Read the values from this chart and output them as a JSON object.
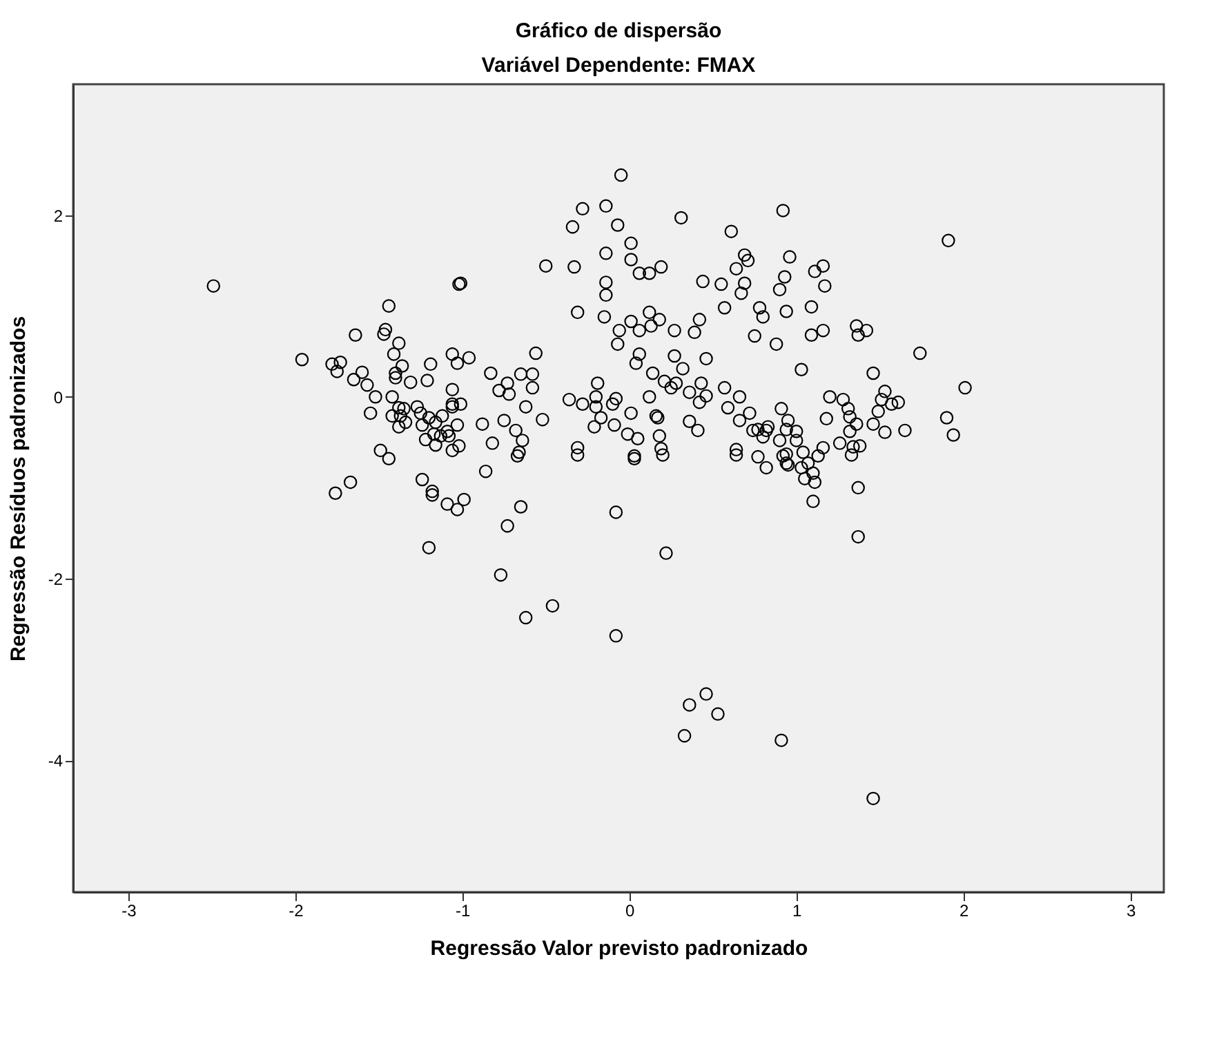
{
  "chart_data": {
    "type": "scatter",
    "title": "Gráfico de dispersão",
    "subtitle": "Variável Dependente: FMAX",
    "xlabel": "Regressão Valor previsto padronizado",
    "ylabel": "Regressão Resíduos padronizados",
    "xlim": [
      -3.33,
      3.2
    ],
    "ylim": [
      -5.45,
      3.44
    ],
    "xticks": [
      -3,
      -2,
      -1,
      0,
      1,
      2,
      3
    ],
    "yticks": [
      -4,
      -2,
      0,
      2
    ],
    "grid": false,
    "marker": "circle",
    "series": [
      {
        "color": "#000000",
        "x": [
          -2.49,
          -1.96,
          -1.44,
          -1.64,
          -1.46,
          -1.47,
          -1.38,
          -1.41,
          -1.36,
          -1.4,
          -1.4,
          -1.78,
          -1.73,
          -1.75,
          -1.6,
          -1.65,
          -1.57,
          -1.52,
          -1.55,
          -1.42,
          -1.31,
          -1.21,
          -1.19,
          -1.06,
          -1.03,
          -1.06,
          -1.02,
          -1.01,
          -1.38,
          -1.35,
          -1.37,
          -1.42,
          -1.38,
          -1.34,
          -1.27,
          -1.25,
          -1.2,
          -1.16,
          -1.12,
          -1.24,
          -1.17,
          -1.13,
          -1.09,
          -1.22,
          -1.16,
          -1.06,
          -1.03,
          -1.06,
          -1.02,
          -1.49,
          -1.44,
          -1.67,
          -1.24,
          -1.18,
          -1.76,
          -1.18,
          -1.09,
          -1.03,
          -0.99,
          -0.86,
          -0.65,
          -0.73,
          -1.2,
          -0.77,
          -0.62,
          -0.46,
          -0.08,
          -0.08,
          -0.67,
          -0.31,
          0.22,
          0.36,
          0.46,
          0.53,
          0.33,
          0.91,
          1.46,
          1.37,
          1.37,
          1.1,
          0.03,
          0.82,
          0.95,
          1.05,
          1.11,
          1.1,
          1.03,
          0.77,
          0.64,
          0.2,
          1.13,
          1.33,
          0.92,
          -0.05,
          -0.28,
          -0.14,
          -0.34,
          -0.07,
          0.31,
          0.92,
          0.61,
          0.01,
          0.01,
          -0.14,
          0.06,
          0.12,
          0.19,
          -0.5,
          -0.33,
          -0.14,
          -0.14,
          0.44,
          0.55,
          0.64,
          0.69,
          0.71,
          0.69,
          0.67,
          0.96,
          0.93,
          0.9,
          1.11,
          1.16,
          1.17,
          0.57,
          -0.31,
          -0.15,
          -0.06,
          -0.07,
          0.01,
          0.06,
          0.12,
          0.13,
          0.18,
          0.27,
          0.39,
          0.42,
          0.78,
          0.8,
          0.75,
          0.88,
          0.94,
          1.09,
          1.09,
          1.16,
          1.03,
          0.06,
          0.04,
          0.27,
          0.32,
          0.46,
          0.14,
          0.21,
          0.25,
          0.28,
          0.36,
          0.43,
          0.46,
          0.42,
          0.12,
          0.16,
          0.17,
          0.01,
          -0.01,
          0.05,
          0.03,
          0.18,
          0.19,
          0.36,
          0.41,
          0.57,
          0.66,
          0.59,
          0.66,
          0.72,
          0.74,
          0.77,
          0.82,
          0.83,
          0.8,
          0.9,
          0.91,
          0.95,
          0.94,
          1.0,
          1.0,
          1.04,
          0.94,
          0.64,
          0.94,
          1.07,
          1.18,
          1.2,
          1.26,
          1.28,
          1.16,
          -0.96,
          -1.06,
          -1.01,
          -1.08,
          -0.88,
          -0.83,
          -0.78,
          -0.73,
          -0.72,
          -0.65,
          -0.58,
          -0.56,
          -0.58,
          -0.62,
          -0.52,
          -0.75,
          -0.68,
          -0.82,
          -0.64,
          -0.66,
          -0.36,
          -0.28,
          -0.2,
          -0.19,
          -0.2,
          -0.1,
          -0.08,
          -0.17,
          -0.21,
          -0.09,
          -0.31,
          1.91,
          1.36,
          1.37,
          1.42,
          1.74,
          1.46,
          1.31,
          1.32,
          1.36,
          1.32,
          1.34,
          1.38,
          1.46,
          1.49,
          1.53,
          1.51,
          1.57,
          1.61,
          1.53,
          1.65,
          1.9,
          1.94,
          2.01
        ],
        "values": [
          1.22,
          0.41,
          1.0,
          0.68,
          0.74,
          0.69,
          0.59,
          0.47,
          0.34,
          0.26,
          0.21,
          0.36,
          0.38,
          0.28,
          0.27,
          0.19,
          0.13,
          0.0,
          -0.18,
          0.0,
          0.16,
          0.18,
          0.36,
          0.47,
          0.37,
          0.08,
          1.24,
          1.25,
          -0.12,
          -0.13,
          -0.21,
          -0.21,
          -0.33,
          -0.28,
          -0.11,
          -0.18,
          -0.23,
          -0.28,
          -0.21,
          -0.31,
          -0.41,
          -0.43,
          -0.38,
          -0.47,
          -0.53,
          -0.59,
          -0.31,
          -0.11,
          -0.54,
          -0.59,
          -0.68,
          -0.94,
          -0.91,
          -1.04,
          -1.06,
          -1.08,
          -1.18,
          -1.24,
          -1.13,
          -0.82,
          -1.21,
          -1.42,
          -1.66,
          -1.96,
          -2.43,
          -2.3,
          -1.27,
          -2.63,
          -0.65,
          -0.64,
          -1.72,
          -3.39,
          -3.27,
          -3.49,
          -3.73,
          -3.78,
          -4.42,
          -1.0,
          -1.54,
          -1.15,
          -0.68,
          -0.78,
          -0.75,
          -0.9,
          -0.94,
          -0.84,
          -0.78,
          -0.66,
          -0.64,
          -0.64,
          -0.65,
          -0.64,
          -0.65,
          2.44,
          2.07,
          2.1,
          1.87,
          1.89,
          1.97,
          2.05,
          1.82,
          1.69,
          1.51,
          1.58,
          1.36,
          1.36,
          1.43,
          1.44,
          1.43,
          1.26,
          1.12,
          1.27,
          1.24,
          1.41,
          1.56,
          1.5,
          1.25,
          1.14,
          1.54,
          1.32,
          1.18,
          1.38,
          1.44,
          1.22,
          0.98,
          0.93,
          0.88,
          0.73,
          0.58,
          0.83,
          0.73,
          0.93,
          0.78,
          0.85,
          0.73,
          0.71,
          0.85,
          0.98,
          0.88,
          0.67,
          0.58,
          0.94,
          0.99,
          0.68,
          0.73,
          0.3,
          0.47,
          0.37,
          0.45,
          0.31,
          0.42,
          0.26,
          0.17,
          0.1,
          0.15,
          0.05,
          0.15,
          0.01,
          -0.06,
          0.0,
          -0.21,
          -0.23,
          -0.18,
          -0.41,
          -0.46,
          -0.65,
          -0.43,
          -0.57,
          -0.27,
          -0.37,
          0.1,
          0.0,
          -0.12,
          -0.26,
          -0.18,
          -0.37,
          -0.36,
          -0.37,
          -0.33,
          -0.44,
          -0.48,
          -0.13,
          -0.26,
          -0.36,
          -0.38,
          -0.48,
          -0.61,
          -0.63,
          -0.58,
          -0.73,
          -0.73,
          -0.24,
          0.0,
          -0.51,
          -0.03,
          -0.56,
          0.43,
          -0.08,
          -0.08,
          -0.43,
          -0.3,
          0.26,
          0.07,
          0.15,
          0.03,
          0.25,
          0.25,
          0.48,
          0.1,
          -0.11,
          -0.25,
          -0.26,
          -0.37,
          -0.51,
          -0.48,
          -0.61,
          -0.03,
          -0.08,
          -0.11,
          0.15,
          0.0,
          -0.08,
          -0.02,
          -0.23,
          -0.33,
          -0.31,
          -0.56,
          1.72,
          0.78,
          0.68,
          0.73,
          0.48,
          0.26,
          -0.13,
          -0.22,
          -0.3,
          -0.38,
          -0.55,
          -0.54,
          -0.3,
          -0.16,
          0.06,
          -0.03,
          -0.08,
          -0.06,
          -0.39,
          -0.37,
          -0.23,
          -0.42,
          0.1
        ]
      }
    ]
  }
}
